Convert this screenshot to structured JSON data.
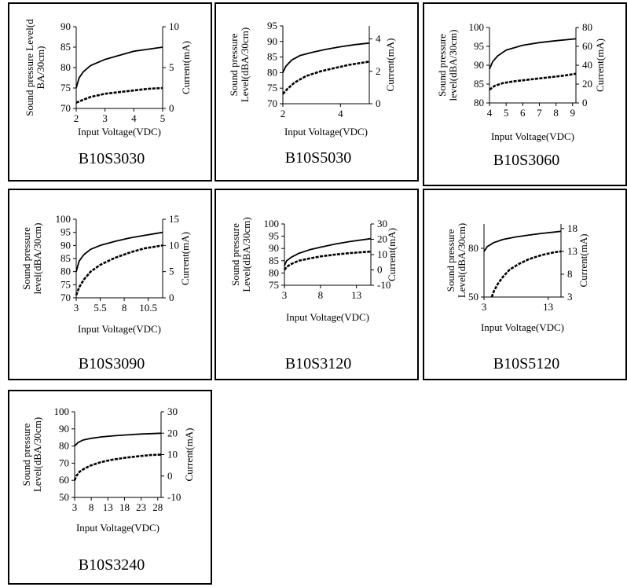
{
  "chart_data": [
    {
      "type": "line",
      "title": "B10S3030",
      "xlabel": "Input Voltage(VDC)",
      "ylabel": [
        "Sound pressure Level(d",
        "BA/30cm)"
      ],
      "y2label": "Current(mA)",
      "xlim": [
        2,
        5
      ],
      "xticks": [
        2,
        3,
        4,
        5
      ],
      "ylim": [
        70,
        90
      ],
      "yticks": [
        70,
        75,
        80,
        85,
        90
      ],
      "y2lim": [
        0,
        10
      ],
      "y2ticks": [
        0,
        5,
        10
      ],
      "series": [
        {
          "axis": "left",
          "style": "solid",
          "x": [
            2,
            2.1,
            2.25,
            2.5,
            3,
            3.5,
            4,
            4.5,
            5
          ],
          "values": [
            75,
            77.5,
            79,
            80.5,
            82,
            83,
            84,
            84.5,
            85
          ]
        },
        {
          "axis": "right",
          "style": "dashed",
          "x": [
            2,
            2.2,
            2.5,
            3,
            3.5,
            4,
            4.5,
            5
          ],
          "values": [
            0.7,
            1.0,
            1.4,
            1.8,
            2.0,
            2.2,
            2.4,
            2.5
          ]
        }
      ]
    },
    {
      "type": "line",
      "title": "B10S5030",
      "xlabel": "Input Voltage(VDC)",
      "ylabel": [
        "Sound pressure",
        "Level(dBA/30cm)"
      ],
      "y2label": "Current(mA)",
      "xlim": [
        2,
        5
      ],
      "xticks": [
        2,
        4
      ],
      "ylim": [
        70,
        95
      ],
      "yticks": [
        70,
        75,
        80,
        85,
        90,
        95
      ],
      "y2lim": [
        0,
        4.8
      ],
      "y2ticks": [
        0,
        2,
        4
      ],
      "series": [
        {
          "axis": "left",
          "style": "solid",
          "x": [
            2,
            2.1,
            2.3,
            2.6,
            3,
            3.5,
            4,
            4.5,
            5
          ],
          "values": [
            80,
            82,
            84,
            85.5,
            86.5,
            87.5,
            88.3,
            89,
            89.5
          ]
        },
        {
          "axis": "right",
          "style": "dashed",
          "x": [
            2,
            2.15,
            2.4,
            2.8,
            3.3,
            3.8,
            4.3,
            5
          ],
          "values": [
            0.6,
            0.9,
            1.3,
            1.7,
            2.0,
            2.2,
            2.4,
            2.6
          ]
        }
      ]
    },
    {
      "type": "line",
      "title": "B10S3060",
      "xlabel": "Input Voltage(VDC)",
      "ylabel": [
        "Sound pressure",
        "level(dBA/30cm)"
      ],
      "y2label": "Current(mA)",
      "xlim": [
        4,
        9.2
      ],
      "xticks": [
        4,
        5,
        6,
        7,
        8,
        9
      ],
      "ylim": [
        80,
        100
      ],
      "yticks": [
        80,
        85,
        90,
        95,
        100
      ],
      "y2lim": [
        0,
        80
      ],
      "y2ticks": [
        0,
        20,
        40,
        60,
        80
      ],
      "series": [
        {
          "axis": "left",
          "style": "solid",
          "x": [
            4,
            4.2,
            4.5,
            5,
            6,
            7,
            8,
            9.2
          ],
          "values": [
            89,
            91,
            92.5,
            94,
            95.3,
            96,
            96.5,
            97
          ]
        },
        {
          "axis": "right",
          "style": "dashed",
          "x": [
            4,
            4.3,
            4.8,
            5.5,
            6.5,
            7.5,
            8.5,
            9.2
          ],
          "values": [
            14,
            18,
            21,
            23,
            25,
            27,
            29,
            31
          ]
        }
      ]
    },
    {
      "type": "line",
      "title": "B10S3090",
      "xlabel": "Input Voltage(VDC)",
      "ylabel": [
        "Sound pressure",
        "level(dBA/30cm)"
      ],
      "y2label": "Current(mA)",
      "xlim": [
        3,
        12
      ],
      "xticks": [
        3,
        5.5,
        8,
        10.5
      ],
      "xticklabels": [
        "3",
        "5.5",
        "8",
        "10.5"
      ],
      "ylim": [
        70,
        100
      ],
      "yticks": [
        70,
        75,
        80,
        85,
        90,
        95,
        100
      ],
      "y2lim": [
        0,
        15
      ],
      "y2ticks": [
        0,
        5,
        10,
        15
      ],
      "series": [
        {
          "axis": "left",
          "style": "solid",
          "x": [
            3,
            3.3,
            3.8,
            4.5,
            5.5,
            7,
            8.5,
            10,
            12
          ],
          "values": [
            80,
            84,
            86.5,
            88.5,
            90,
            91.5,
            92.8,
            93.8,
            95
          ]
        },
        {
          "axis": "right",
          "style": "dashed",
          "x": [
            3,
            3.3,
            3.8,
            4.5,
            5.5,
            7,
            8.5,
            10,
            12
          ],
          "values": [
            0.5,
            2.0,
            3.5,
            5.0,
            6.3,
            7.6,
            8.6,
            9.4,
            10
          ]
        }
      ]
    },
    {
      "type": "line",
      "title": "B10S3120",
      "xlabel": "Input Voltage(VDC)",
      "ylabel": [
        "Sound pressure",
        "Level(dBA/30cm)"
      ],
      "y2label": "Current(mA)",
      "xlim": [
        3,
        15
      ],
      "xticks": [
        3,
        8,
        13
      ],
      "ylim": [
        75,
        100
      ],
      "yticks": [
        75,
        80,
        85,
        90,
        95,
        100
      ],
      "y2lim": [
        -10,
        30
      ],
      "y2ticks": [
        -10,
        0,
        10,
        20,
        30
      ],
      "series": [
        {
          "axis": "left",
          "style": "solid",
          "x": [
            3,
            3.3,
            4,
            5,
            6.5,
            8,
            10,
            12,
            15
          ],
          "values": [
            83,
            85,
            86.5,
            88,
            89.5,
            90.5,
            91.8,
            92.8,
            94
          ]
        },
        {
          "axis": "right",
          "style": "dashed",
          "x": [
            3,
            3.3,
            4,
            5,
            6.5,
            8,
            10,
            12,
            15
          ],
          "values": [
            0,
            2,
            4,
            6,
            7.5,
            8.8,
            10,
            11,
            12
          ]
        }
      ]
    },
    {
      "type": "line",
      "title": "B10S5120",
      "xlabel": "Input Voltage(VDC)",
      "ylabel": [
        "Sound pressure",
        "Level(dBA/30cm)"
      ],
      "y2label": "Current(mA)",
      "xlim": [
        3,
        15
      ],
      "xticks": [
        3,
        13
      ],
      "ylim": [
        50,
        95
      ],
      "yticks": [
        50,
        80
      ],
      "y2lim": [
        3,
        19
      ],
      "y2ticks": [
        3,
        8,
        13,
        18
      ],
      "series": [
        {
          "axis": "left",
          "style": "solid",
          "x": [
            3,
            3.5,
            4.5,
            6,
            8,
            10,
            12,
            14,
            15
          ],
          "values": [
            78,
            81,
            83.5,
            85.5,
            87,
            88.2,
            89.2,
            90,
            90.5
          ]
        },
        {
          "axis": "right",
          "style": "dashed",
          "x": [
            4.2,
            4.6,
            5.2,
            6,
            7,
            8.5,
            10,
            12,
            14,
            15
          ],
          "values": [
            3,
            4.5,
            6,
            7.5,
            9,
            10.3,
            11.3,
            12.2,
            12.8,
            13
          ]
        }
      ]
    },
    {
      "type": "line",
      "title": "B10S3240",
      "xlabel": "Input Voltage(VDC)",
      "ylabel": [
        "Sound pressure",
        "Level(dBA/30cm)"
      ],
      "y2label": "Current(mA)",
      "xlim": [
        3,
        29
      ],
      "xticks": [
        3,
        8,
        13,
        18,
        23,
        28
      ],
      "ylim": [
        50,
        100
      ],
      "yticks": [
        50,
        60,
        70,
        80,
        90,
        100
      ],
      "y2lim": [
        -10,
        30
      ],
      "y2ticks": [
        -10,
        0,
        10,
        20,
        30
      ],
      "series": [
        {
          "axis": "left",
          "style": "solid",
          "x": [
            3,
            4,
            5.5,
            8,
            11,
            15,
            19,
            23,
            27,
            29
          ],
          "values": [
            80,
            82,
            83.5,
            84.5,
            85.3,
            86,
            86.5,
            87,
            87.3,
            87.5
          ]
        },
        {
          "axis": "right",
          "style": "dashed",
          "x": [
            3,
            3.5,
            4.5,
            6,
            8,
            11,
            14,
            18,
            22,
            26,
            29
          ],
          "values": [
            -2,
            0,
            2,
            3.5,
            5,
            6.5,
            7.5,
            8.5,
            9.2,
            9.8,
            10
          ]
        }
      ]
    }
  ]
}
